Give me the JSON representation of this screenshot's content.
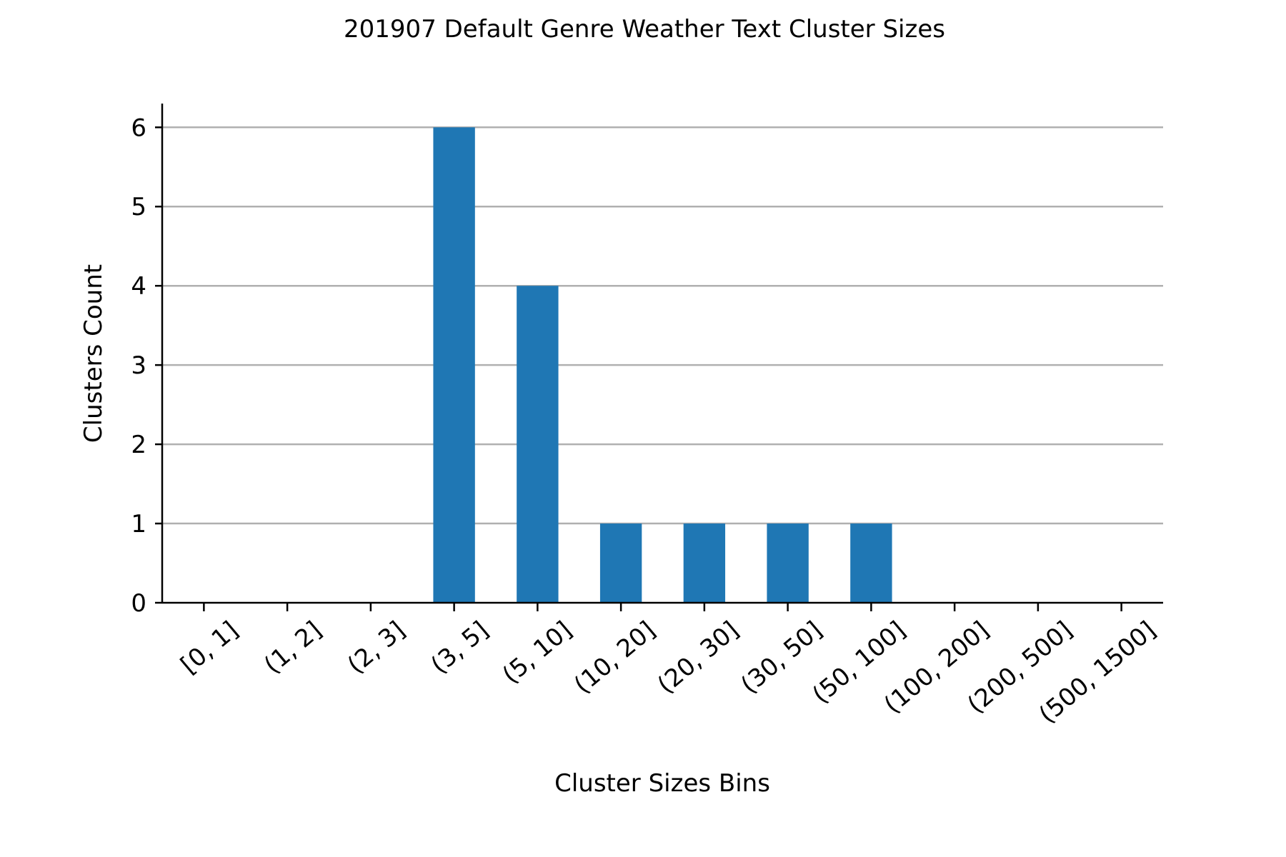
{
  "chart_data": {
    "type": "bar",
    "title": "201907 Default Genre Weather Text Cluster Sizes",
    "xlabel": "Cluster Sizes Bins",
    "ylabel": "Clusters Count",
    "categories": [
      "[0, 1]",
      "(1, 2]",
      "(2, 3]",
      "(3, 5]",
      "(5, 10]",
      "(10, 20]",
      "(20, 30]",
      "(30, 50]",
      "(50, 100]",
      "(100, 200]",
      "(200, 500]",
      "(500, 1500]"
    ],
    "values": [
      0,
      0,
      0,
      6,
      4,
      1,
      1,
      1,
      1,
      0,
      0,
      0
    ],
    "ylim": [
      0,
      6.3
    ],
    "yticks": [
      0,
      1,
      2,
      3,
      4,
      5,
      6
    ],
    "ytick_labels": [
      "0",
      "1",
      "2",
      "3",
      "4",
      "5",
      "6"
    ],
    "grid": "y",
    "bar_color": "#1f77b4",
    "grid_color": "#b0b0b0"
  }
}
